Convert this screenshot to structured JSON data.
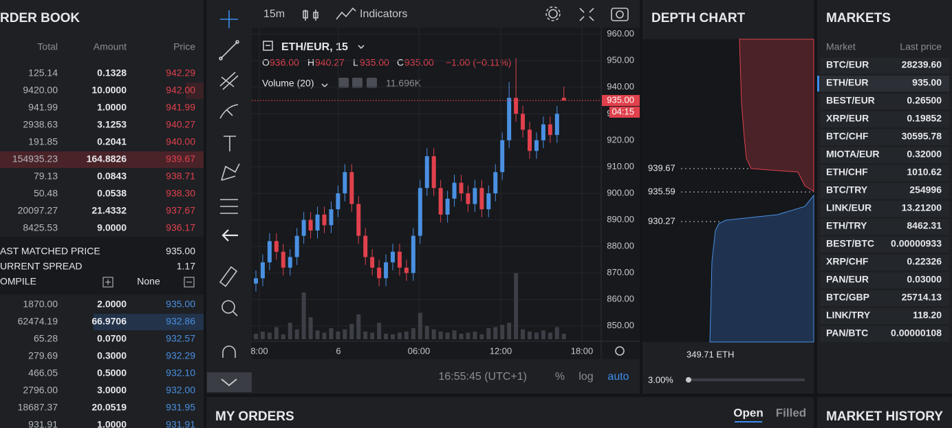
{
  "order_book": {
    "title": "RDER BOOK",
    "columns": [
      "Total",
      "Amount",
      "Price"
    ],
    "asks": [
      [
        "125.14",
        "0.1328",
        "942.29"
      ],
      [
        "9420.00",
        "10.0000",
        "942.00"
      ],
      [
        "941.99",
        "1.0000",
        "941.99"
      ],
      [
        "2938.63",
        "3.1253",
        "940.27"
      ],
      [
        "191.85",
        "0.2041",
        "940.00"
      ],
      [
        "154935.23",
        "164.8826",
        "939.67"
      ],
      [
        "79.13",
        "0.0843",
        "938.71"
      ],
      [
        "50.48",
        "0.0538",
        "938.30"
      ],
      [
        "20097.27",
        "21.4332",
        "937.67"
      ],
      [
        "8425.53",
        "9.0000",
        "936.17"
      ]
    ],
    "last_matched_label": "AST MATCHED PRICE",
    "last_matched": "935.00",
    "spread_label": "URRENT SPREAD",
    "spread": "1.17",
    "compile_label": "OMPILE",
    "compile_value": "None",
    "bids": [
      [
        "1870.00",
        "2.0000",
        "935.00"
      ],
      [
        "62474.19",
        "66.9706",
        "932.86"
      ],
      [
        "65.28",
        "0.0700",
        "932.57"
      ],
      [
        "279.69",
        "0.3000",
        "932.29"
      ],
      [
        "466.05",
        "0.5000",
        "932.10"
      ],
      [
        "2796.00",
        "3.0000",
        "932.00"
      ],
      [
        "18687.37",
        "20.0519",
        "931.95"
      ],
      [
        "931.91",
        "1.0000",
        "931.91"
      ]
    ]
  },
  "chart": {
    "interval": "15m",
    "indicators": "Indicators",
    "symbol": "ETH/EUR, 15",
    "ohlc": [
      [
        "O",
        "936.00"
      ],
      [
        "H",
        "940.27"
      ],
      [
        "L",
        "935.00"
      ],
      [
        "C",
        "935.00"
      ]
    ],
    "change": "−1.00 (−0.11%)",
    "volume_label": "Volume (20)",
    "volume_value": "11.696K",
    "price_tag": "935.00",
    "countdown": "04:15",
    "ylim": [
      844.5,
      962.5
    ],
    "yticks": [
      {
        "value": 960,
        "label": "960.00"
      },
      {
        "value": 950,
        "label": "950.00"
      },
      {
        "value": 940,
        "label": "940.00"
      },
      {
        "value": 930,
        "label": "930.00"
      },
      {
        "value": 920,
        "label": "920.00"
      },
      {
        "value": 910,
        "label": "910.00"
      },
      {
        "value": 900,
        "label": "900.00"
      },
      {
        "value": 890,
        "label": "890.00"
      },
      {
        "value": 880,
        "label": "880.00"
      },
      {
        "value": 870,
        "label": "870.00"
      },
      {
        "value": 860,
        "label": "860.00"
      },
      {
        "value": 850,
        "label": "850.00"
      }
    ],
    "last_price": 935,
    "xticks": [
      "8:00",
      "6",
      "06:00",
      "12:00",
      "18:00"
    ],
    "candles": [
      [
        866,
        871,
        863,
        868
      ],
      [
        868,
        877,
        865,
        874
      ],
      [
        874,
        885,
        871,
        882
      ],
      [
        882,
        885,
        875,
        878
      ],
      [
        878,
        881,
        869,
        872
      ],
      [
        872,
        879,
        869,
        876
      ],
      [
        876,
        887,
        873,
        884
      ],
      [
        884,
        893,
        881,
        890
      ],
      [
        890,
        893,
        883,
        886
      ],
      [
        886,
        895,
        883,
        892
      ],
      [
        892,
        895,
        885,
        888
      ],
      [
        888,
        897,
        885,
        894
      ],
      [
        894,
        903,
        891,
        900
      ],
      [
        900,
        911,
        897,
        908
      ],
      [
        908,
        911,
        893,
        896
      ],
      [
        896,
        899,
        881,
        884
      ],
      [
        884,
        887,
        873,
        876
      ],
      [
        876,
        879,
        869,
        872
      ],
      [
        872,
        875,
        865,
        868
      ],
      [
        868,
        877,
        865,
        874
      ],
      [
        874,
        881,
        871,
        878
      ],
      [
        878,
        881,
        869,
        872
      ],
      [
        872,
        875,
        867,
        870
      ],
      [
        870,
        887,
        867,
        884
      ],
      [
        884,
        905,
        881,
        902
      ],
      [
        902,
        917,
        899,
        914
      ],
      [
        914,
        917,
        899,
        902
      ],
      [
        902,
        905,
        889,
        892
      ],
      [
        892,
        901,
        889,
        898
      ],
      [
        898,
        907,
        895,
        904
      ],
      [
        904,
        907,
        897,
        900
      ],
      [
        900,
        903,
        893,
        896
      ],
      [
        896,
        905,
        893,
        902
      ],
      [
        902,
        905,
        891,
        894
      ],
      [
        894,
        903,
        891,
        900
      ],
      [
        900,
        911,
        897,
        908
      ],
      [
        908,
        923,
        905,
        920
      ],
      [
        920,
        942,
        917,
        936
      ],
      [
        936,
        951,
        927,
        930
      ],
      [
        930,
        933,
        921,
        924
      ],
      [
        924,
        927,
        913,
        916
      ],
      [
        916,
        923,
        913,
        920
      ],
      [
        920,
        929,
        917,
        926
      ],
      [
        926,
        929,
        919,
        922
      ],
      [
        922,
        933,
        919,
        930
      ],
      [
        936,
        940.27,
        935,
        935
      ]
    ],
    "volumes": [
      10,
      14,
      12,
      22,
      9,
      30,
      18,
      85,
      40,
      16,
      12,
      20,
      14,
      18,
      28,
      45,
      14,
      12,
      30,
      10,
      9,
      12,
      14,
      20,
      48,
      24,
      18,
      14,
      12,
      16,
      10,
      12,
      14,
      9,
      20,
      22,
      26,
      30,
      120,
      18,
      14,
      12,
      16,
      12,
      22,
      10
    ],
    "time": "16:55:45 (UTC+1)",
    "buttons": [
      "%",
      "log",
      "auto"
    ]
  },
  "depth_chart": {
    "title": "DEPTH CHART",
    "levels": [
      "939.67",
      "935.59",
      "930.27"
    ],
    "amount": "349.71 ETH",
    "range": "3.00%"
  },
  "markets": {
    "title": "MARKETS",
    "columns": [
      "Market",
      "Last price"
    ],
    "rows": [
      [
        "BTC/EUR",
        "28239.60"
      ],
      [
        "ETH/EUR",
        "935.00"
      ],
      [
        "BEST/EUR",
        "0.26500"
      ],
      [
        "XRP/EUR",
        "0.19852"
      ],
      [
        "BTC/CHF",
        "30595.78"
      ],
      [
        "MIOTA/EUR",
        "0.32000"
      ],
      [
        "ETH/CHF",
        "1010.62"
      ],
      [
        "BTC/TRY",
        "254996"
      ],
      [
        "LINK/EUR",
        "13.21200"
      ],
      [
        "ETH/TRY",
        "8462.31"
      ],
      [
        "BEST/BTC",
        "0.00000933"
      ],
      [
        "XRP/CHF",
        "0.22326"
      ],
      [
        "PAN/EUR",
        "0.03000"
      ],
      [
        "BTC/GBP",
        "25714.13"
      ],
      [
        "LINK/TRY",
        "118.20"
      ],
      [
        "PAN/BTC",
        "0.00000108"
      ]
    ]
  },
  "my_orders": {
    "title": "MY ORDERS",
    "tabs": [
      "Open",
      "Filled"
    ]
  },
  "market_history": {
    "title": "MARKET HISTORY"
  }
}
